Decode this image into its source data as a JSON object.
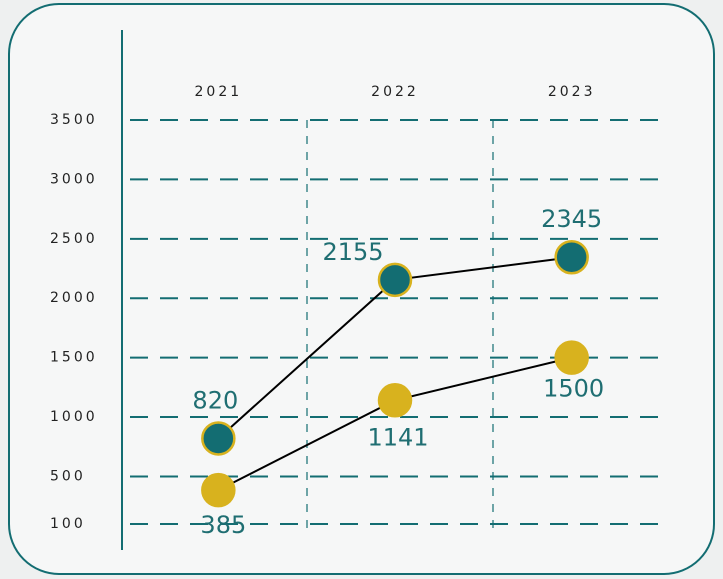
{
  "chart_data": {
    "type": "line",
    "categories": [
      "2021",
      "2022",
      "2023"
    ],
    "series": [
      {
        "color": "#136d72",
        "values": [
          820,
          2155,
          2345
        ]
      },
      {
        "color": "#d8b21e",
        "values": [
          385,
          1141,
          1500
        ]
      }
    ],
    "ylim": [
      100,
      3500
    ],
    "yticks": [
      100,
      500,
      1000,
      1500,
      2000,
      2500,
      3000,
      3500
    ],
    "grid": true
  }
}
